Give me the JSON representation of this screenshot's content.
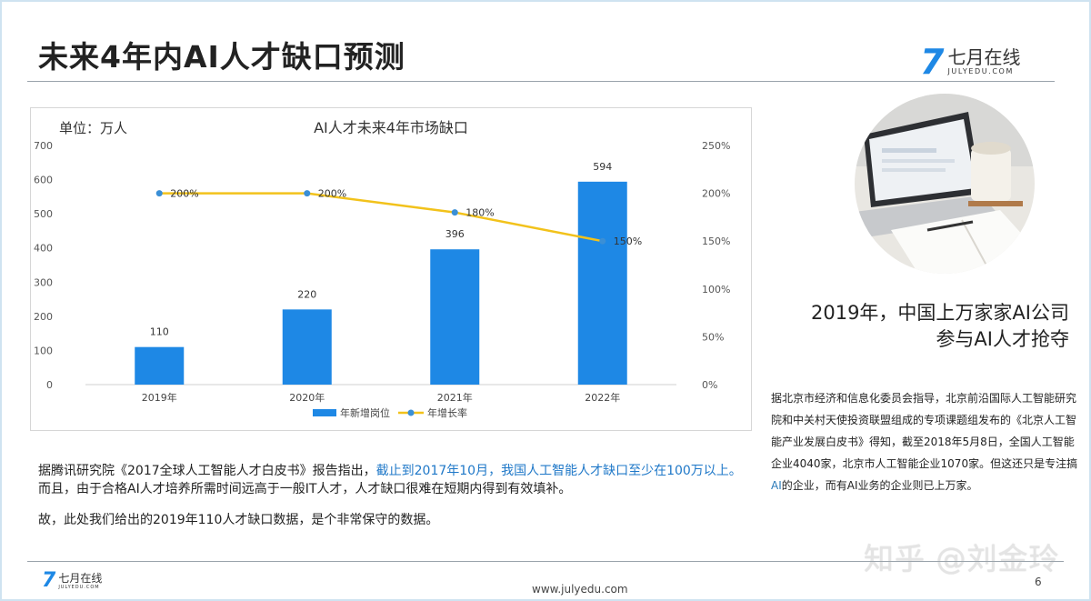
{
  "slide": {
    "title": "未来4年内AI人才缺口预测",
    "page_number": "6",
    "footer_url": "www.julyedu.com",
    "watermark": "知乎 @刘金玲"
  },
  "logo": {
    "mark": "7",
    "name": "七月在线",
    "domain": "JULYEDU.COM",
    "color": "#1e88e5"
  },
  "chart_data": {
    "type": "bar",
    "title": "AI人才未来4年市场缺口",
    "unit_label": "单位：万人",
    "categories": [
      "2019年",
      "2020年",
      "2021年",
      "2022年"
    ],
    "series": [
      {
        "name": "年新增岗位",
        "kind": "bar",
        "axis": "left",
        "values": [
          110,
          220,
          396,
          594
        ],
        "labels": [
          "110",
          "220",
          "396",
          "594"
        ],
        "color": "#1e88e5"
      },
      {
        "name": "年增长率",
        "kind": "line",
        "axis": "right",
        "values": [
          200,
          200,
          180,
          150
        ],
        "labels": [
          "200%",
          "200%",
          "180%",
          "150%"
        ],
        "color": "#f2c21b",
        "marker_color": "#3a8fd6"
      }
    ],
    "y_left": {
      "min": 0,
      "max": 700,
      "step": 100,
      "ticks": [
        "0",
        "100",
        "200",
        "300",
        "400",
        "500",
        "600",
        "700"
      ]
    },
    "y_right": {
      "min": 0,
      "max": 250,
      "step": 50,
      "ticks": [
        "0%",
        "50%",
        "100%",
        "150%",
        "200%",
        "250%"
      ]
    },
    "legend_position": "bottom",
    "grid": false
  },
  "right_panel": {
    "caption_line1": "2019年，中国上万家家AI公司",
    "caption_line2": "参与AI人才抢夺",
    "note_part1": "据北京市经济和信息化委员会指导，北京前沿国际人工智能研究院和中关村天使投资联盟组成的专项课题组发布的《北京人工智能产业发展白皮书》得知，截至2018年5月8日，全国人工智能企业4040家，北京市人工智能企业1070家。但这还只是专注搞",
    "note_highlight": "AI",
    "note_part2": "的企业，而有AI业务的企业则已上万家。"
  },
  "body": {
    "p1_a": "据腾讯研究院《2017全球人工智能人才白皮书》报告指出，",
    "p1_highlight": "截止到2017年10月，我国人工智能人才缺口至少在100万以上。",
    "p1_b": "而且，由于合格AI人才培养所需时间远高于一般IT人才，人才缺口很难在短期内得到有效填补。",
    "p2": "故，此处我们给出的2019年110人才缺口数据，是个非常保守的数据。"
  }
}
